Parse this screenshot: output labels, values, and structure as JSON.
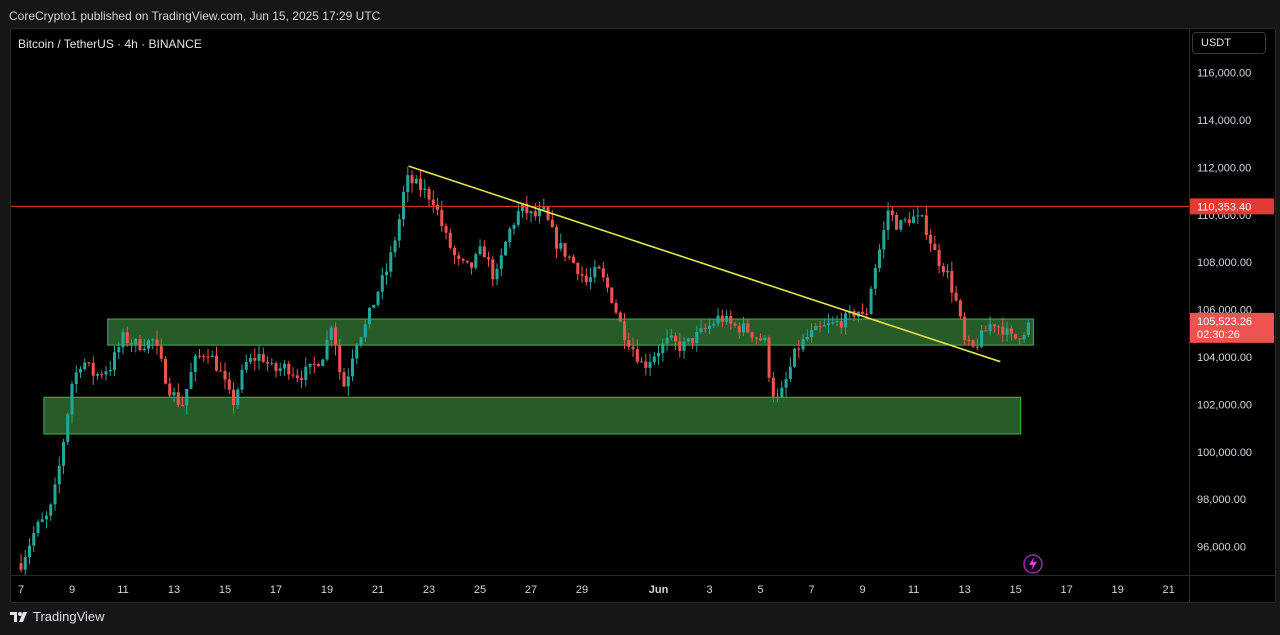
{
  "header": {
    "publish_info": "CoreCrypto1 published on TradingView.com, Jun 15, 2025 17:29 UTC"
  },
  "chart": {
    "symbol_title": "Bitcoin / TetherUS · 4h · BINANCE",
    "currency": "USDT"
  },
  "footer": {
    "brand": "TradingView"
  },
  "colors": {
    "up": "#26a69a",
    "down": "#ef5350",
    "zone_fill": "#2e6b2e",
    "zone_border": "#4caf50",
    "resistance_line": "#e53935",
    "trendline": "#e8e34a"
  },
  "chart_data": {
    "type": "candlestick",
    "y_axis": {
      "min": 94800,
      "max": 117500,
      "tick_labels": [
        "96,000.00",
        "98,000.00",
        "100,000.00",
        "102,000.00",
        "104,000.00",
        "106,000.00",
        "108,000.00",
        "110,000.00",
        "112,000.00",
        "114,000.00",
        "116,000.00"
      ],
      "tick_values": [
        96000,
        98000,
        100000,
        102000,
        104000,
        106000,
        108000,
        110000,
        112000,
        114000,
        116000
      ]
    },
    "x_axis": {
      "labels": [
        {
          "text": "7",
          "day": 7
        },
        {
          "text": "9",
          "day": 9
        },
        {
          "text": "11",
          "day": 11
        },
        {
          "text": "13",
          "day": 13
        },
        {
          "text": "15",
          "day": 15
        },
        {
          "text": "17",
          "day": 17
        },
        {
          "text": "19",
          "day": 19
        },
        {
          "text": "21",
          "day": 21
        },
        {
          "text": "23",
          "day": 23
        },
        {
          "text": "25",
          "day": 25
        },
        {
          "text": "27",
          "day": 27
        },
        {
          "text": "29",
          "day": 29
        },
        {
          "text": "Jun",
          "day": 32
        },
        {
          "text": "3",
          "day": 34
        },
        {
          "text": "5",
          "day": 36
        },
        {
          "text": "7",
          "day": 38
        },
        {
          "text": "9",
          "day": 40
        },
        {
          "text": "11",
          "day": 42
        },
        {
          "text": "13",
          "day": 44
        },
        {
          "text": "15",
          "day": 46
        },
        {
          "text": "17",
          "day": 48
        },
        {
          "text": "19",
          "day": 50
        },
        {
          "text": "21",
          "day": 52
        }
      ],
      "first_day": 7,
      "last_day": 52.8
    },
    "price_labels": {
      "resistance": {
        "text": "110,353.40",
        "value": 110353.4
      },
      "current": {
        "text": "105,523.26",
        "value": 105523.26
      },
      "countdown": "02:30:26"
    },
    "resistance_level": 110353.4,
    "zones": [
      {
        "x0": 10.4,
        "x1": 46.7,
        "y_low": 104500,
        "y_high": 105600
      },
      {
        "x0": 7.9,
        "x1": 46.2,
        "y_low": 100750,
        "y_high": 102300
      }
    ],
    "trendline": {
      "x0": 22.2,
      "y0": 112050,
      "x1": 45.4,
      "y1": 103800
    },
    "anchors": [
      [
        7.0,
        95300
      ],
      [
        7.6,
        96800
      ],
      [
        8.1,
        97300
      ],
      [
        8.4,
        98700
      ],
      [
        8.7,
        100700
      ],
      [
        9.0,
        102900
      ],
      [
        9.4,
        103900
      ],
      [
        9.9,
        103200
      ],
      [
        10.5,
        103600
      ],
      [
        11.0,
        104800
      ],
      [
        11.6,
        104500
      ],
      [
        12.2,
        104700
      ],
      [
        12.8,
        102700
      ],
      [
        13.3,
        101900
      ],
      [
        13.8,
        103800
      ],
      [
        14.3,
        104300
      ],
      [
        14.8,
        103400
      ],
      [
        15.3,
        102000
      ],
      [
        15.8,
        103700
      ],
      [
        16.4,
        104100
      ],
      [
        16.9,
        103400
      ],
      [
        17.4,
        103600
      ],
      [
        17.9,
        103200
      ],
      [
        18.4,
        103500
      ],
      [
        18.9,
        104200
      ],
      [
        19.2,
        105600
      ],
      [
        19.5,
        103400
      ],
      [
        19.7,
        102700
      ],
      [
        20.1,
        104600
      ],
      [
        20.5,
        105300
      ],
      [
        21.0,
        106800
      ],
      [
        21.4,
        107800
      ],
      [
        21.8,
        109600
      ],
      [
        22.1,
        111500
      ],
      [
        22.6,
        111200
      ],
      [
        23.2,
        110600
      ],
      [
        23.6,
        109200
      ],
      [
        24.1,
        108000
      ],
      [
        24.6,
        107700
      ],
      [
        25.1,
        108600
      ],
      [
        25.6,
        107200
      ],
      [
        26.1,
        109200
      ],
      [
        26.6,
        110300
      ],
      [
        27.1,
        109900
      ],
      [
        27.5,
        110100
      ],
      [
        28.0,
        108800
      ],
      [
        28.5,
        108200
      ],
      [
        28.8,
        107800
      ],
      [
        29.2,
        107100
      ],
      [
        29.6,
        107700
      ],
      [
        30.1,
        106700
      ],
      [
        30.6,
        105100
      ],
      [
        31.1,
        104200
      ],
      [
        31.4,
        103600
      ],
      [
        31.9,
        104200
      ],
      [
        32.4,
        104700
      ],
      [
        32.9,
        104400
      ],
      [
        33.4,
        104800
      ],
      [
        33.9,
        105200
      ],
      [
        34.4,
        105700
      ],
      [
        34.9,
        105300
      ],
      [
        35.4,
        105200
      ],
      [
        35.8,
        104900
      ],
      [
        36.2,
        104600
      ],
      [
        36.4,
        102700
      ],
      [
        36.7,
        102100
      ],
      [
        37.0,
        103000
      ],
      [
        37.4,
        104300
      ],
      [
        37.9,
        104900
      ],
      [
        38.4,
        105200
      ],
      [
        38.9,
        105400
      ],
      [
        39.4,
        105600
      ],
      [
        39.8,
        106000
      ],
      [
        40.1,
        105500
      ],
      [
        40.4,
        107400
      ],
      [
        40.8,
        109100
      ],
      [
        41.0,
        110200
      ],
      [
        41.4,
        109500
      ],
      [
        41.9,
        109900
      ],
      [
        42.4,
        109700
      ],
      [
        42.9,
        108200
      ],
      [
        43.3,
        107600
      ],
      [
        43.7,
        106200
      ],
      [
        44.0,
        104600
      ],
      [
        44.3,
        104300
      ],
      [
        44.7,
        104900
      ],
      [
        45.1,
        105500
      ],
      [
        45.5,
        105200
      ],
      [
        45.9,
        104700
      ],
      [
        46.3,
        105100
      ],
      [
        46.6,
        105500
      ]
    ]
  }
}
